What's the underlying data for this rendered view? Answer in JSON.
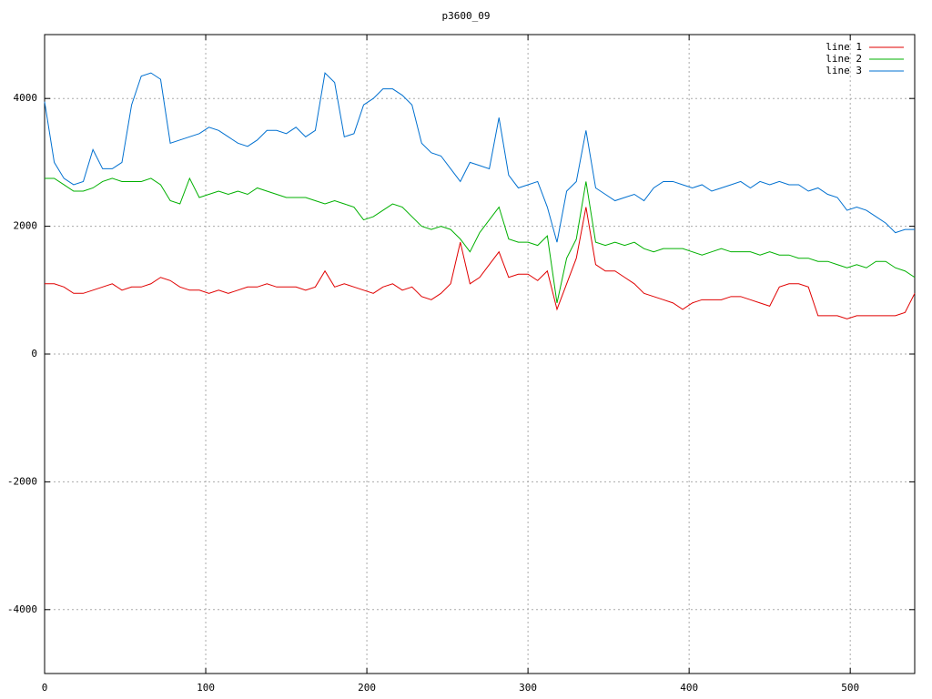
{
  "chart_data": {
    "type": "line",
    "title": "p3600_09",
    "x": [
      0,
      6,
      12,
      18,
      24,
      30,
      36,
      42,
      48,
      54,
      60,
      66,
      72,
      78,
      84,
      90,
      96,
      102,
      108,
      114,
      120,
      126,
      132,
      138,
      144,
      150,
      156,
      162,
      168,
      174,
      180,
      186,
      192,
      198,
      204,
      210,
      216,
      222,
      228,
      234,
      240,
      246,
      252,
      258,
      264,
      270,
      276,
      282,
      288,
      294,
      300,
      306,
      312,
      318,
      324,
      330,
      336,
      342,
      348,
      354,
      360,
      366,
      372,
      378,
      384,
      390,
      396,
      402,
      408,
      414,
      420,
      426,
      432,
      438,
      444,
      450,
      456,
      462,
      468,
      474,
      480,
      486,
      492,
      498,
      504,
      510,
      516,
      522,
      528,
      534,
      540
    ],
    "series": [
      {
        "name": "line 1",
        "color": "#e00000",
        "values": [
          1100,
          1100,
          1050,
          950,
          950,
          1000,
          1050,
          1100,
          1000,
          1050,
          1050,
          1100,
          1200,
          1150,
          1050,
          1000,
          1000,
          950,
          1000,
          950,
          1000,
          1050,
          1050,
          1100,
          1050,
          1050,
          1050,
          1000,
          1050,
          1300,
          1050,
          1100,
          1050,
          1000,
          950,
          1050,
          1100,
          1000,
          1050,
          900,
          850,
          950,
          1100,
          1750,
          1100,
          1200,
          1400,
          1600,
          1200,
          1250,
          1250,
          1150,
          1300,
          700,
          1100,
          1500,
          2300,
          1400,
          1300,
          1300,
          1200,
          1100,
          950,
          900,
          850,
          800,
          700,
          800,
          850,
          850,
          850,
          900,
          900,
          850,
          800,
          750,
          1050,
          1100,
          1100,
          1050,
          600,
          600,
          600,
          550,
          600,
          600,
          600,
          600,
          600,
          650,
          950
        ]
      },
      {
        "name": "line 2",
        "color": "#00b000",
        "values": [
          2750,
          2750,
          2650,
          2550,
          2550,
          2600,
          2700,
          2750,
          2700,
          2700,
          2700,
          2750,
          2650,
          2400,
          2350,
          2750,
          2450,
          2500,
          2550,
          2500,
          2550,
          2500,
          2600,
          2550,
          2500,
          2450,
          2450,
          2450,
          2400,
          2350,
          2400,
          2350,
          2300,
          2100,
          2150,
          2250,
          2350,
          2300,
          2150,
          2000,
          1950,
          2000,
          1950,
          1800,
          1600,
          1900,
          2100,
          2300,
          1800,
          1750,
          1750,
          1700,
          1850,
          800,
          1500,
          1800,
          2700,
          1750,
          1700,
          1750,
          1700,
          1750,
          1650,
          1600,
          1650,
          1650,
          1650,
          1600,
          1550,
          1600,
          1650,
          1600,
          1600,
          1600,
          1550,
          1600,
          1550,
          1550,
          1500,
          1500,
          1450,
          1450,
          1400,
          1350,
          1400,
          1350,
          1450,
          1450,
          1350,
          1300,
          1200
        ]
      },
      {
        "name": "line 3",
        "color": "#0070d0",
        "values": [
          3950,
          3000,
          2750,
          2650,
          2700,
          3200,
          2900,
          2900,
          3000,
          3900,
          4350,
          4400,
          4300,
          3300,
          3350,
          3400,
          3450,
          3550,
          3500,
          3400,
          3300,
          3250,
          3350,
          3500,
          3500,
          3450,
          3550,
          3400,
          3500,
          4400,
          4250,
          3400,
          3450,
          3900,
          4000,
          4150,
          4150,
          4050,
          3900,
          3300,
          3150,
          3100,
          2900,
          2700,
          3000,
          2950,
          2900,
          3700,
          2800,
          2600,
          2650,
          2700,
          2300,
          1750,
          2550,
          2700,
          3500,
          2600,
          2500,
          2400,
          2450,
          2500,
          2400,
          2600,
          2700,
          2700,
          2650,
          2600,
          2650,
          2550,
          2600,
          2650,
          2700,
          2600,
          2700,
          2650,
          2700,
          2650,
          2650,
          2550,
          2600,
          2500,
          2450,
          2250,
          2300,
          2250,
          2150,
          2050,
          1900,
          1950,
          1950
        ]
      }
    ],
    "xlim": [
      0,
      540
    ],
    "xticks": [
      0,
      100,
      200,
      300,
      400,
      500
    ],
    "ylim": [
      -5000,
      5000
    ],
    "yticks": [
      -4000,
      -2000,
      0,
      2000,
      4000
    ],
    "grid": true,
    "legend": "top-right"
  }
}
